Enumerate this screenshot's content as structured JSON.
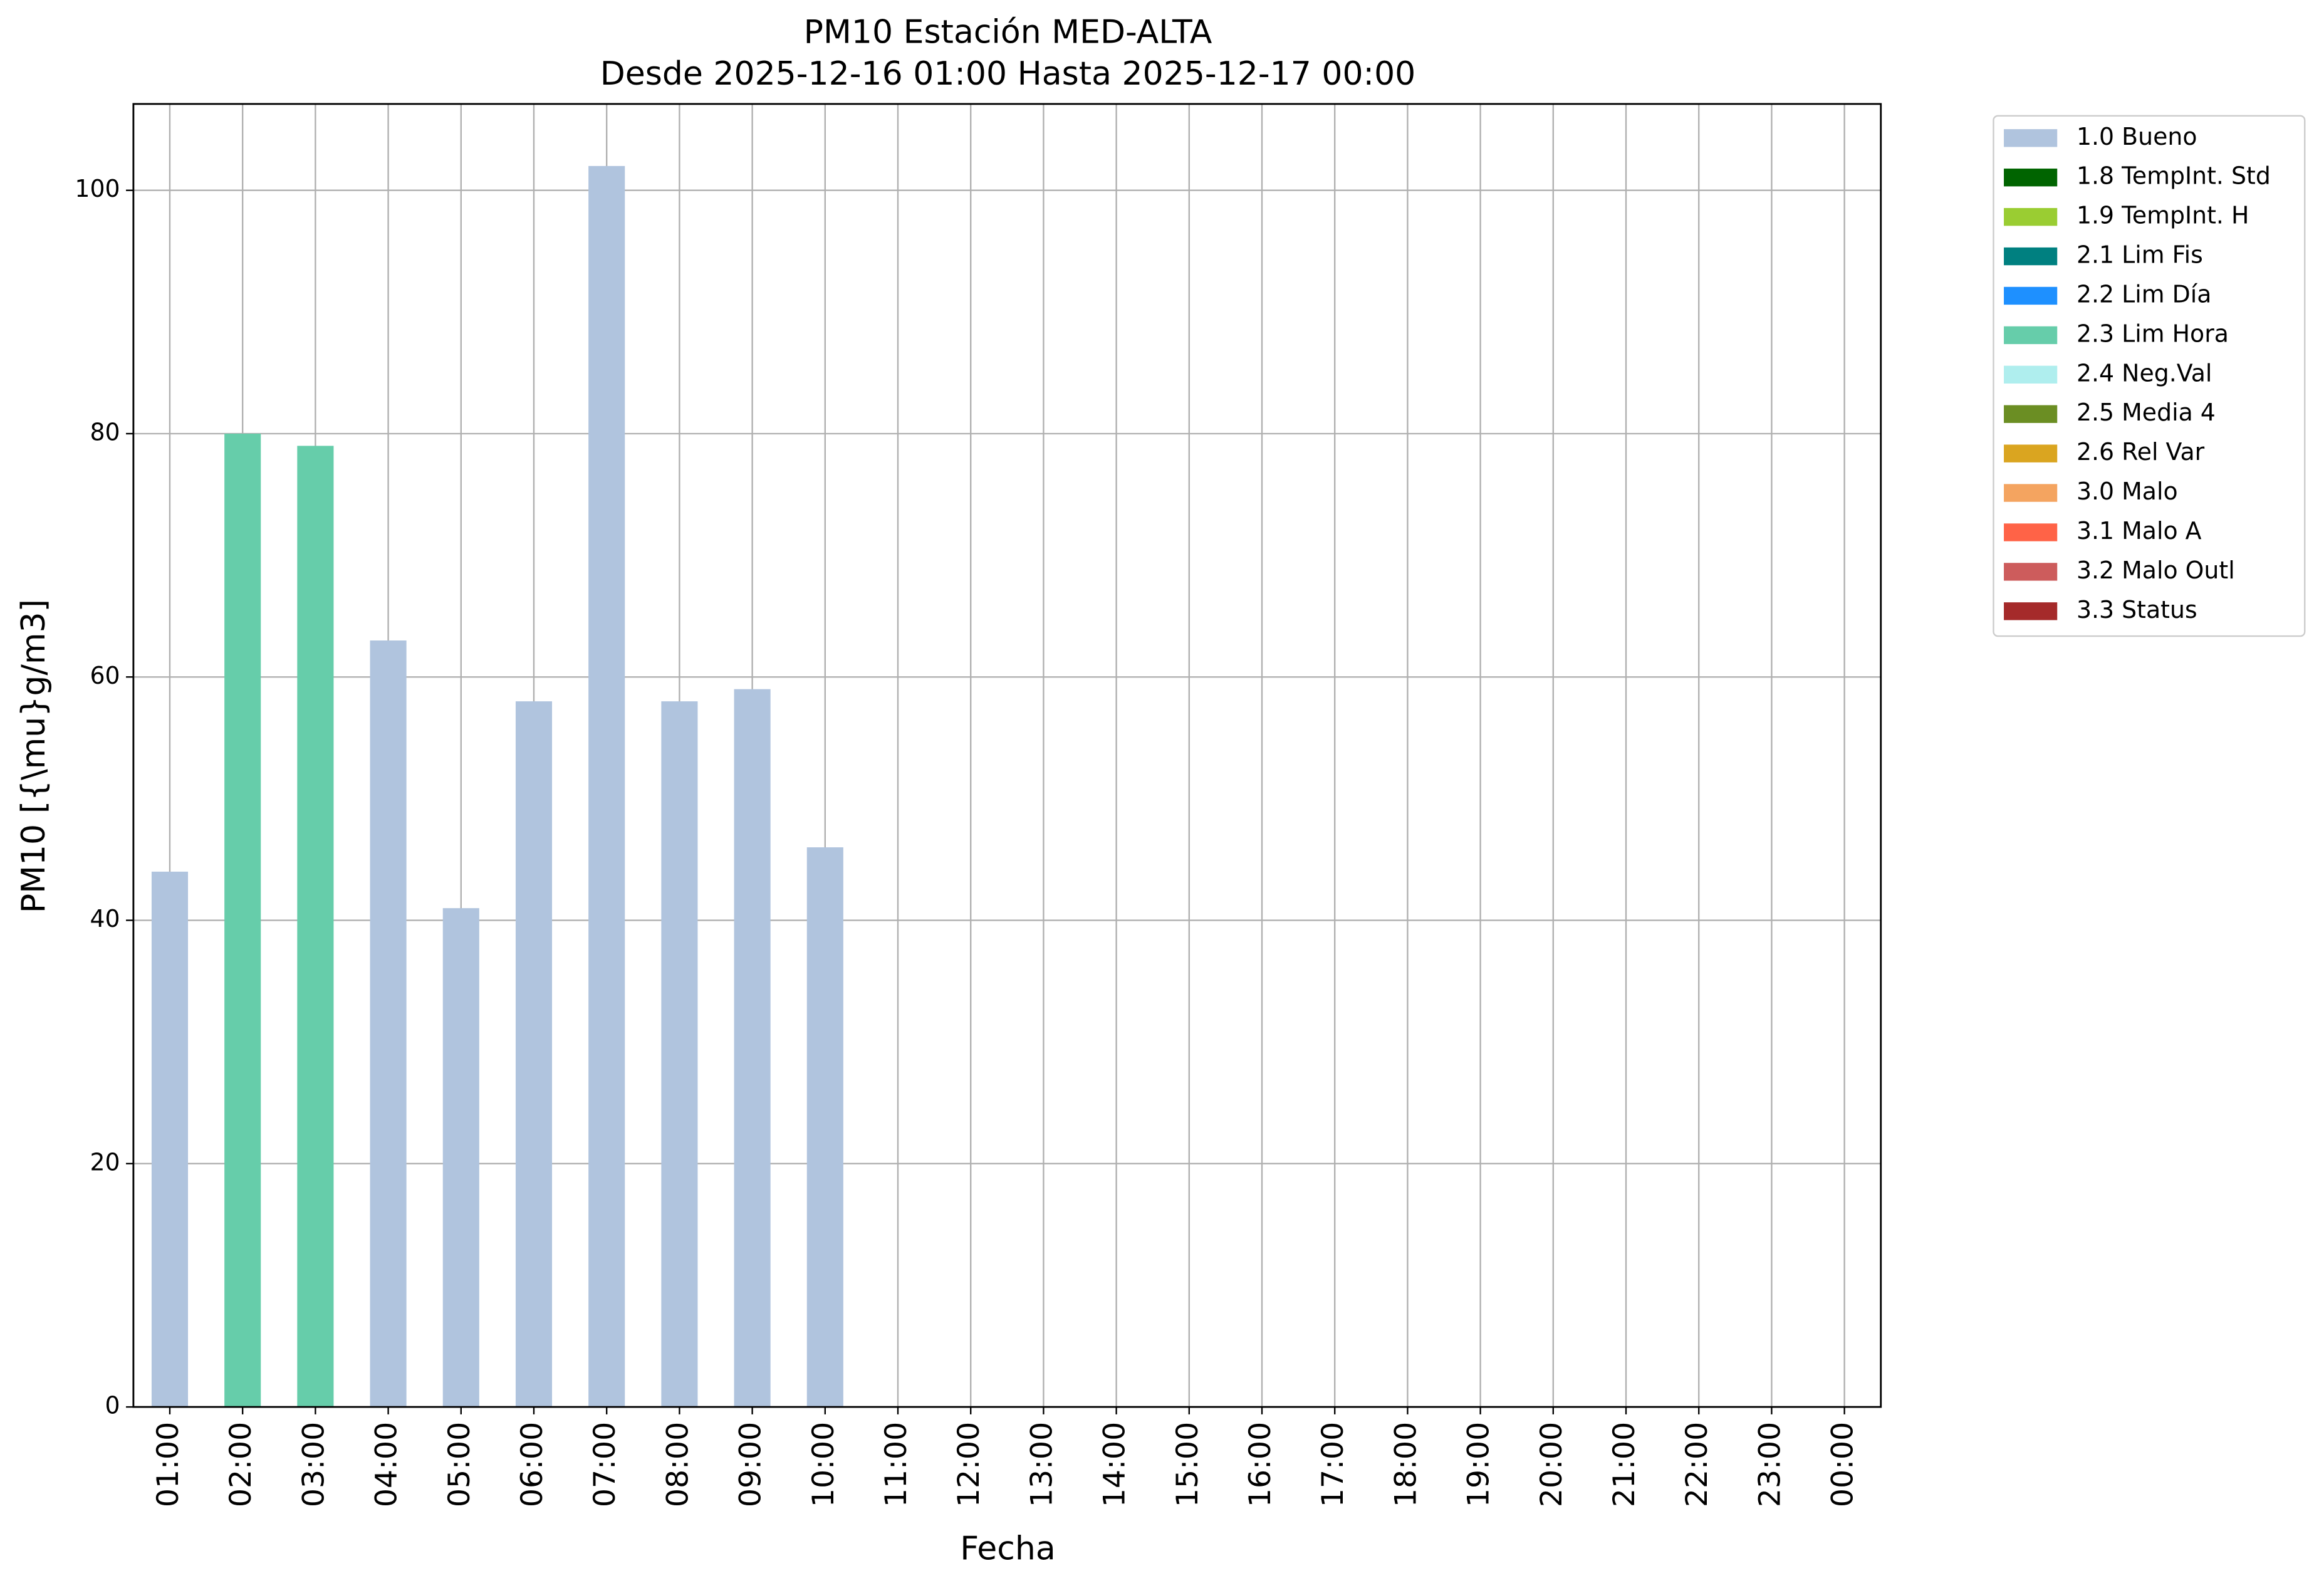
{
  "chart_data": {
    "type": "stacked_bar",
    "title": "PM10 Estación MED-ALTA",
    "subtitle": "Desde 2025-12-16 01:00 Hasta 2025-12-17 00:00",
    "x_label": "Fecha",
    "y_label": "PM10 [{\\mu}g/m3]",
    "categories": [
      "01:00",
      "02:00",
      "03:00",
      "04:00",
      "05:00",
      "06:00",
      "07:00",
      "08:00",
      "09:00",
      "10:00",
      "11:00",
      "12:00",
      "13:00",
      "14:00",
      "15:00",
      "16:00",
      "17:00",
      "18:00",
      "19:00",
      "20:00",
      "21:00",
      "22:00",
      "23:00",
      "00:00"
    ],
    "ylim": [
      0,
      107.1
    ],
    "yticks": [
      0,
      20,
      40,
      60,
      80,
      100
    ],
    "grid": true,
    "legend": "outside-right",
    "series": [
      {
        "name": "1.0 Bueno",
        "color": "#b0c4de",
        "values": [
          44,
          null,
          null,
          63,
          41,
          58,
          102,
          58,
          59,
          46,
          null,
          null,
          null,
          null,
          null,
          null,
          null,
          null,
          null,
          null,
          null,
          null,
          null,
          null
        ]
      },
      {
        "name": "1.8 TempInt. Std",
        "color": "#006400",
        "values": [
          null,
          null,
          null,
          null,
          null,
          null,
          null,
          null,
          null,
          null,
          null,
          null,
          null,
          null,
          null,
          null,
          null,
          null,
          null,
          null,
          null,
          null,
          null,
          null
        ]
      },
      {
        "name": "1.9 TempInt. H",
        "color": "#9acd32",
        "values": [
          null,
          null,
          null,
          null,
          null,
          null,
          null,
          null,
          null,
          null,
          null,
          null,
          null,
          null,
          null,
          null,
          null,
          null,
          null,
          null,
          null,
          null,
          null,
          null
        ]
      },
      {
        "name": "2.1 Lim Fis",
        "color": "#008080",
        "values": [
          null,
          null,
          null,
          null,
          null,
          null,
          null,
          null,
          null,
          null,
          null,
          null,
          null,
          null,
          null,
          null,
          null,
          null,
          null,
          null,
          null,
          null,
          null,
          null
        ]
      },
      {
        "name": "2.2 Lim Día",
        "color": "#1e90ff",
        "values": [
          null,
          null,
          null,
          null,
          null,
          null,
          null,
          null,
          null,
          null,
          null,
          null,
          null,
          null,
          null,
          null,
          null,
          null,
          null,
          null,
          null,
          null,
          null,
          null
        ]
      },
      {
        "name": "2.3 Lim Hora",
        "color": "#66cdaa",
        "values": [
          null,
          80,
          79,
          null,
          null,
          null,
          null,
          null,
          null,
          null,
          null,
          null,
          null,
          null,
          null,
          null,
          null,
          null,
          null,
          null,
          null,
          null,
          null,
          null
        ]
      },
      {
        "name": "2.4 Neg.Val",
        "color": "#afeeee",
        "values": [
          null,
          null,
          null,
          null,
          null,
          null,
          null,
          null,
          null,
          null,
          null,
          null,
          null,
          null,
          null,
          null,
          null,
          null,
          null,
          null,
          null,
          null,
          null,
          null
        ]
      },
      {
        "name": "2.5 Media 4",
        "color": "#6b8e23",
        "values": [
          null,
          null,
          null,
          null,
          null,
          null,
          null,
          null,
          null,
          null,
          null,
          null,
          null,
          null,
          null,
          null,
          null,
          null,
          null,
          null,
          null,
          null,
          null,
          null
        ]
      },
      {
        "name": "2.6 Rel Var",
        "color": "#daa520",
        "values": [
          null,
          null,
          null,
          null,
          null,
          null,
          null,
          null,
          null,
          null,
          null,
          null,
          null,
          null,
          null,
          null,
          null,
          null,
          null,
          null,
          null,
          null,
          null,
          null
        ]
      },
      {
        "name": "3.0 Malo",
        "color": "#f4a460",
        "values": [
          null,
          null,
          null,
          null,
          null,
          null,
          null,
          null,
          null,
          null,
          null,
          null,
          null,
          null,
          null,
          null,
          null,
          null,
          null,
          null,
          null,
          null,
          null,
          null
        ]
      },
      {
        "name": "3.1 Malo A",
        "color": "#ff6347",
        "values": [
          null,
          null,
          null,
          null,
          null,
          null,
          null,
          null,
          null,
          null,
          null,
          null,
          null,
          null,
          null,
          null,
          null,
          null,
          null,
          null,
          null,
          null,
          null,
          null
        ]
      },
      {
        "name": "3.2 Malo Outl",
        "color": "#cd5c5c",
        "values": [
          null,
          null,
          null,
          null,
          null,
          null,
          null,
          null,
          null,
          null,
          null,
          null,
          null,
          null,
          null,
          null,
          null,
          null,
          null,
          null,
          null,
          null,
          null,
          null
        ]
      },
      {
        "name": "3.3 Status",
        "color": "#a52a2a",
        "values": [
          null,
          null,
          null,
          null,
          null,
          null,
          null,
          null,
          null,
          null,
          null,
          null,
          null,
          null,
          null,
          null,
          null,
          null,
          null,
          null,
          null,
          null,
          null,
          null
        ]
      }
    ]
  }
}
